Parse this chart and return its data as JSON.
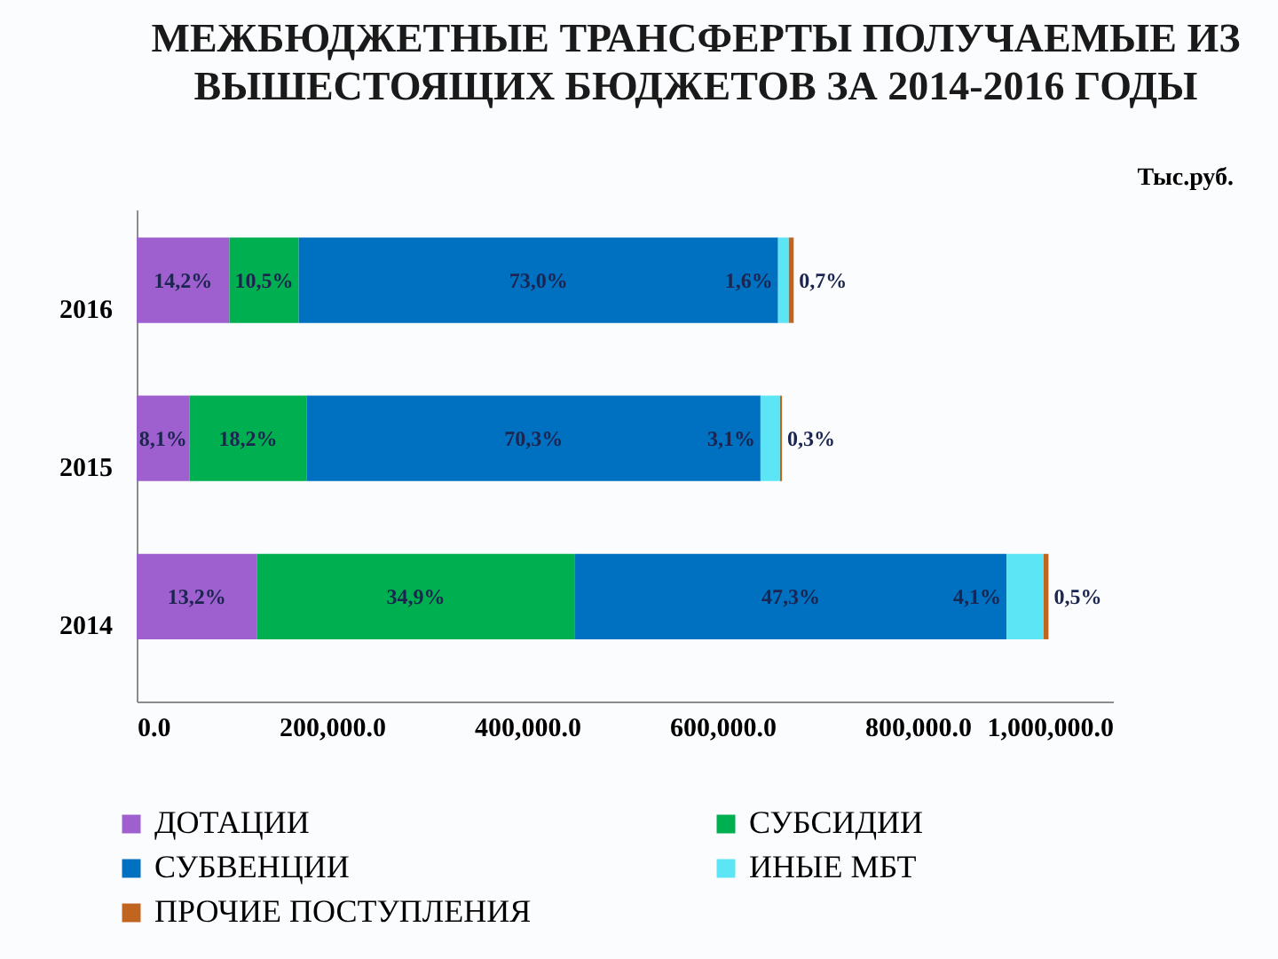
{
  "chart_data": {
    "type": "bar",
    "title": "МЕЖБЮДЖЕТНЫЕ ТРАНСФЕРТЫ ПОЛУЧАЕМЫЕ ИЗ ВЫШЕСТОЯЩИХ БЮДЖЕТОВ ЗА 2014-2016 ГОДЫ",
    "annotations": [
      "Тыс.руб.",
      "14,2%",
      "10,5%",
      "73,0%",
      "1,6%",
      "0,7%",
      "8,1%",
      "18,2%",
      "70,3%",
      "3,1%",
      "0,3%",
      "13,2%",
      "34,9%",
      "47,3%",
      "4,1%",
      "0,5%"
    ],
    "orientation": "horizontal",
    "stacked": true,
    "legend": "bottom",
    "categories": [
      "2016",
      "2015",
      "2014"
    ],
    "series": [
      {
        "name": "ДОТАЦИИ",
        "color": "#9e5fcf",
        "values": [
          95000,
          54000,
          123000
        ]
      },
      {
        "name": "СУБСИДИИ",
        "color": "#00b050",
        "values": [
          71000,
          120000,
          326000
        ]
      },
      {
        "name": "СУБВЕНЦИИ",
        "color": "#0070c0",
        "values": [
          491000,
          465000,
          442000
        ]
      },
      {
        "name": "ИНЫЕ МБТ",
        "color": "#5ce6f5",
        "values": [
          11000,
          20000,
          38000
        ]
      },
      {
        "name": "ПРОЧИЕ ПОСТУПЛЕНИЯ",
        "color": "#c0651f",
        "values": [
          5000,
          2000,
          5000
        ]
      }
    ],
    "xlim": [
      0,
      1000000
    ],
    "xticks": [
      {
        "value": 0,
        "label": "0.0"
      },
      {
        "value": 200000,
        "label": "200,000.0"
      },
      {
        "value": 400000,
        "label": "400,000.0"
      },
      {
        "value": 600000,
        "label": "600,000.0"
      },
      {
        "value": 800000,
        "label": "800,000.0"
      },
      {
        "value": 1000000,
        "label": "1,000,000.0"
      }
    ]
  }
}
